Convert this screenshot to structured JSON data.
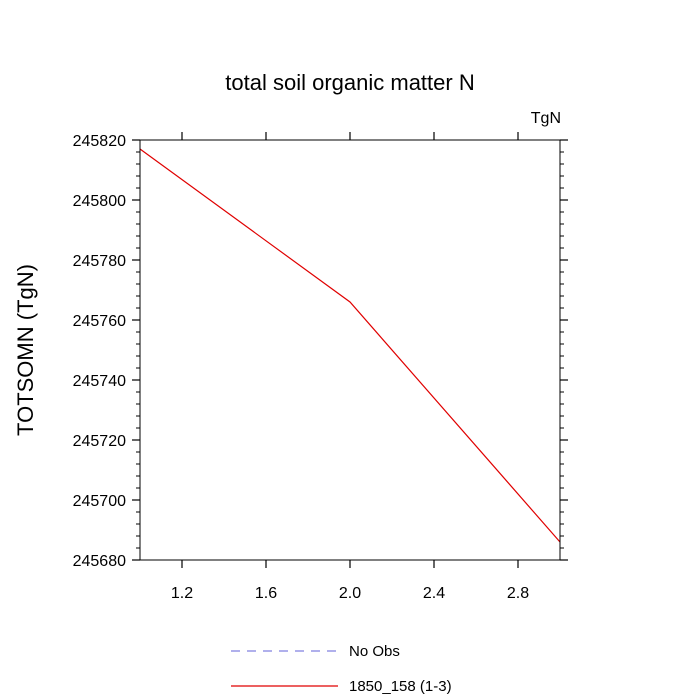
{
  "chart_data": {
    "type": "line",
    "title": "total soil organic matter N",
    "units_label": "TgN",
    "xlabel": "",
    "ylabel": "TOTSOMN  (TgN)",
    "xlim": [
      1.0,
      3.0
    ],
    "ylim": [
      245680,
      245820
    ],
    "xticks": [
      1.2,
      1.6,
      2.0,
      2.4,
      2.8
    ],
    "xtick_labels": [
      "1.2",
      "1.6",
      "2.0",
      "2.4",
      "2.8"
    ],
    "yticks": [
      245680,
      245700,
      245720,
      245740,
      245760,
      245780,
      245800,
      245820
    ],
    "ytick_labels": [
      "245680",
      "245700",
      "245720",
      "245740",
      "245760",
      "245780",
      "245800",
      "245820"
    ],
    "grid": false,
    "legend_placement": "bottom",
    "series": [
      {
        "name": "No Obs",
        "x": [],
        "y": [],
        "color": "#8080e0",
        "dash": "dashed"
      },
      {
        "name": "1850_158 (1-3)",
        "x": [
          1.0,
          2.0,
          3.0
        ],
        "y": [
          245817,
          245766,
          245686
        ],
        "color": "#e00000",
        "dash": "solid"
      }
    ]
  }
}
